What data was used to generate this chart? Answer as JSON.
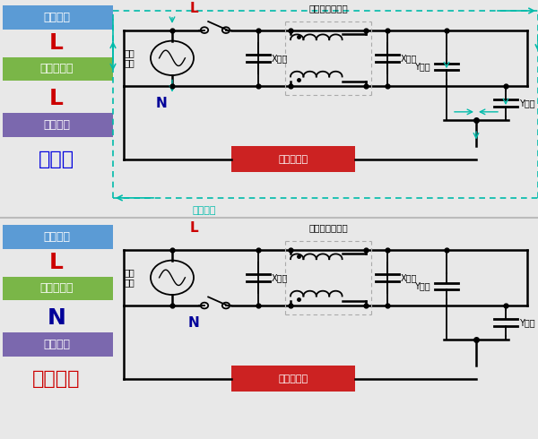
{
  "bg_color": "#e8e8e8",
  "panel_bg": "#ffffff",
  "top_label_items": [
    {
      "text": "接続箇所",
      "bg": "#5b9bd5",
      "fg": "#ffffff",
      "fontsize": 9
    },
    {
      "text": "L",
      "bg": null,
      "fg": "#cc0000",
      "fontsize": 18
    },
    {
      "text": "片切り個所",
      "bg": "#7ab648",
      "fg": "#ffffff",
      "fontsize": 9
    },
    {
      "text": "L",
      "bg": null,
      "fg": "#cc0000",
      "fontsize": 18
    },
    {
      "text": "漏れ電流",
      "bg": "#7b68ae",
      "fg": "#ffffff",
      "fontsize": 9
    },
    {
      "text": "流れる",
      "bg": null,
      "fg": "#0000dd",
      "fontsize": 16
    }
  ],
  "bot_label_items": [
    {
      "text": "接続箇所",
      "bg": "#5b9bd5",
      "fg": "#ffffff",
      "fontsize": 9
    },
    {
      "text": "L",
      "bg": null,
      "fg": "#cc0000",
      "fontsize": 18
    },
    {
      "text": "片切り個所",
      "bg": "#7ab648",
      "fg": "#ffffff",
      "fontsize": 9
    },
    {
      "text": "N",
      "bg": null,
      "fg": "#000099",
      "fontsize": 18
    },
    {
      "text": "漏れ電流",
      "bg": "#7b68ae",
      "fg": "#ffffff",
      "fontsize": 9
    },
    {
      "text": "流れない",
      "bg": null,
      "fg": "#cc0000",
      "fontsize": 16
    }
  ],
  "leak_color": "#00bbaa",
  "meter_bg": "#cc2222",
  "meter_fg": "#ffffff",
  "label_L_color": "#cc0000",
  "label_N_color": "#000099",
  "wire_color": "#000000",
  "choke_box_color": "#aaaaaa"
}
